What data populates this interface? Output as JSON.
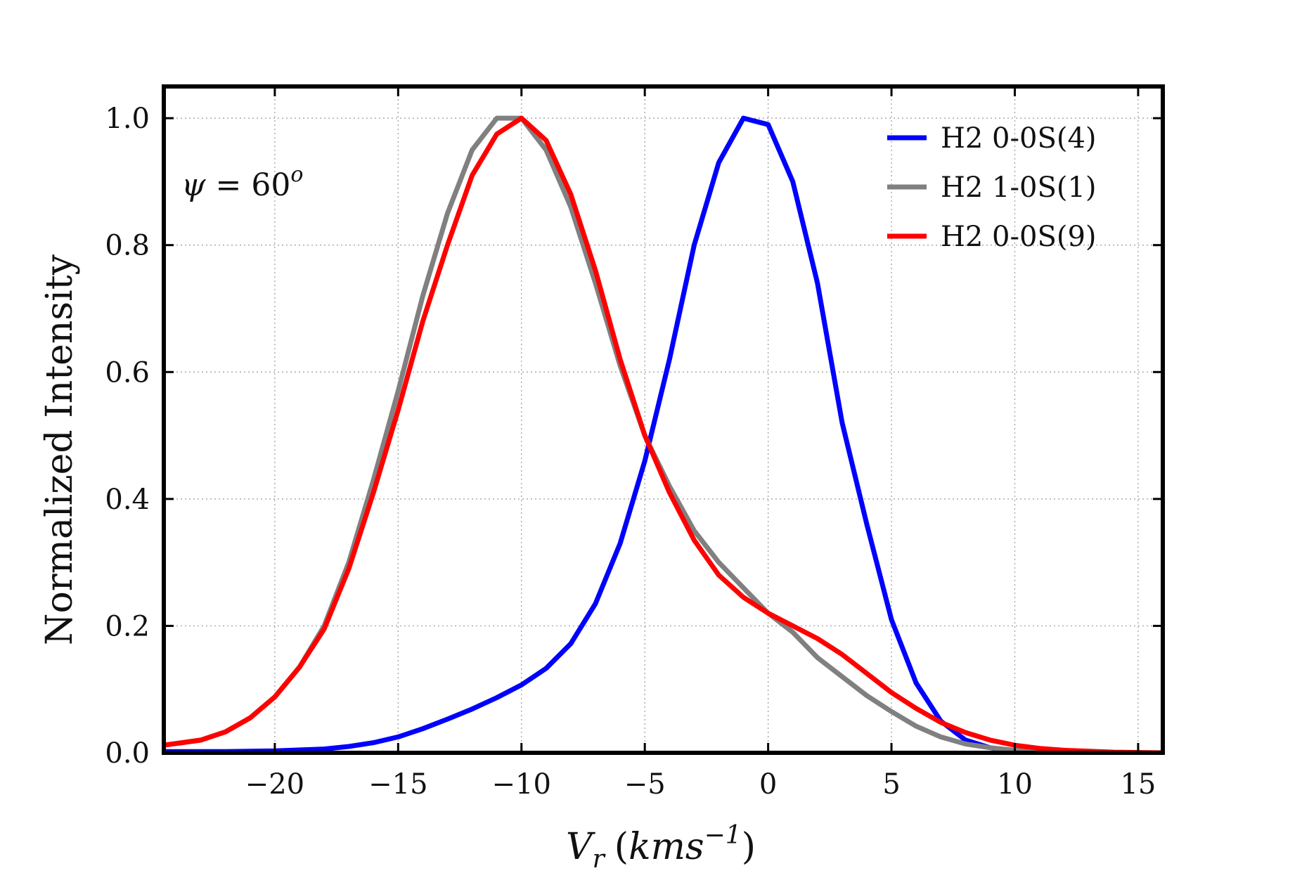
{
  "chart_data": {
    "type": "line",
    "title": "",
    "xlabel": "V_r (kms^{-1})",
    "xlabel_parts": {
      "var": "V",
      "sub": "r",
      "open": "(",
      "unit": "kms",
      "exp": "−1",
      "close": ")"
    },
    "ylabel": "Normalized Intensity",
    "xlim": [
      -24.5,
      16
    ],
    "ylim": [
      0,
      1.05
    ],
    "xticks": [
      -20,
      -15,
      -10,
      -5,
      0,
      5,
      10,
      15
    ],
    "xtick_labels": [
      "−20",
      "−15",
      "−10",
      "−5",
      "0",
      "5",
      "10",
      "15"
    ],
    "yticks": [
      0.0,
      0.2,
      0.4,
      0.6,
      0.8,
      1.0
    ],
    "ytick_labels": [
      "0.0",
      "0.2",
      "0.4",
      "0.6",
      "0.8",
      "1.0"
    ],
    "grid": true,
    "legend_position": "top-right",
    "annotation": {
      "text_var": "ψ",
      "text_eq": " = 60",
      "text_sup": "o"
    },
    "series": [
      {
        "name": "H2 0-0S(4)",
        "color": "#0000ff",
        "x": [
          -24.5,
          -22,
          -20,
          -18,
          -17,
          -16,
          -15,
          -14,
          -13,
          -12,
          -11,
          -10,
          -9,
          -8,
          -7,
          -6,
          -5,
          -4,
          -3,
          -2,
          -1,
          0,
          1,
          2,
          3,
          4,
          5,
          6,
          7,
          8,
          9,
          10,
          12,
          14,
          16
        ],
        "y": [
          0.002,
          0.002,
          0.003,
          0.006,
          0.01,
          0.016,
          0.025,
          0.038,
          0.053,
          0.069,
          0.087,
          0.107,
          0.133,
          0.172,
          0.235,
          0.33,
          0.46,
          0.62,
          0.8,
          0.93,
          1.0,
          0.99,
          0.9,
          0.74,
          0.52,
          0.36,
          0.21,
          0.11,
          0.05,
          0.02,
          0.008,
          0.002,
          0.0,
          0.0,
          0.0
        ]
      },
      {
        "name": "H2 1-0S(1)",
        "color": "#808080",
        "x": [
          -24.5,
          -23,
          -22,
          -21,
          -20,
          -19,
          -18,
          -17,
          -16,
          -15,
          -14,
          -13,
          -12,
          -11,
          -10,
          -9,
          -8,
          -7,
          -6,
          -5,
          -4,
          -3,
          -2,
          -1,
          0,
          1,
          2,
          3,
          4,
          5,
          6,
          7,
          8,
          9,
          10,
          11,
          12,
          14,
          16
        ],
        "y": [
          0.012,
          0.02,
          0.033,
          0.055,
          0.088,
          0.135,
          0.2,
          0.3,
          0.43,
          0.57,
          0.72,
          0.85,
          0.95,
          1.0,
          1.0,
          0.95,
          0.86,
          0.74,
          0.61,
          0.5,
          0.42,
          0.35,
          0.3,
          0.26,
          0.22,
          0.19,
          0.15,
          0.12,
          0.09,
          0.065,
          0.042,
          0.025,
          0.014,
          0.008,
          0.004,
          0.002,
          0.001,
          0.0,
          0.0
        ]
      },
      {
        "name": "H2 0-0S(9)",
        "color": "#ff0000",
        "x": [
          -24.5,
          -23,
          -22,
          -21,
          -20,
          -19,
          -18,
          -17,
          -16,
          -15,
          -14,
          -13,
          -12,
          -11,
          -10,
          -9,
          -8,
          -7,
          -6,
          -5,
          -4,
          -3,
          -2,
          -1,
          0,
          1,
          2,
          3,
          4,
          5,
          6,
          7,
          8,
          9,
          10,
          11,
          12,
          14,
          16
        ],
        "y": [
          0.012,
          0.02,
          0.033,
          0.055,
          0.088,
          0.135,
          0.195,
          0.29,
          0.41,
          0.54,
          0.68,
          0.8,
          0.91,
          0.975,
          1.0,
          0.965,
          0.88,
          0.76,
          0.62,
          0.5,
          0.41,
          0.335,
          0.28,
          0.245,
          0.22,
          0.2,
          0.18,
          0.155,
          0.125,
          0.095,
          0.07,
          0.048,
          0.032,
          0.02,
          0.012,
          0.007,
          0.004,
          0.001,
          0.0
        ]
      }
    ]
  }
}
